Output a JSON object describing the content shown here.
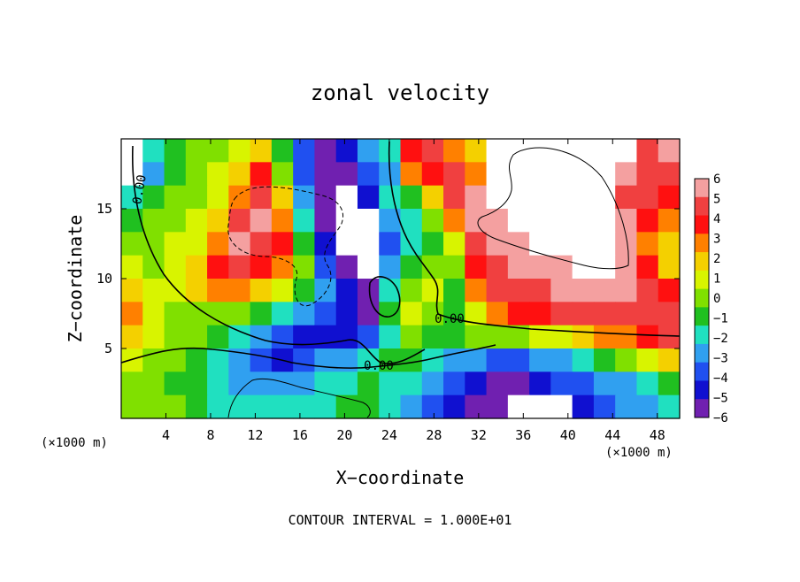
{
  "chart_data": {
    "type": "heatmap",
    "title": "zonal velocity",
    "xlabel": "X−coordinate",
    "ylabel": "Z−coordinate",
    "x_unit": "(×1000 m)",
    "y_unit": "(×1000 m)",
    "xlim": [
      0,
      50
    ],
    "ylim": [
      0,
      20
    ],
    "xticks": [
      4,
      8,
      12,
      16,
      20,
      24,
      28,
      32,
      36,
      40,
      44,
      48
    ],
    "yticks": [
      5,
      10,
      15
    ],
    "colorbar": {
      "levels": [
        6,
        5,
        4,
        3,
        2,
        1,
        0,
        -1,
        -2,
        -3,
        -4,
        -5,
        -6
      ],
      "labels": [
        "6",
        "5",
        "4",
        "3",
        "2",
        "1",
        "0",
        "−1",
        "−2",
        "−3",
        "−4",
        "−5",
        "−6"
      ],
      "colors": [
        "#f4a0a0",
        "#f04040",
        "#ff1010",
        "#ff8000",
        "#f4d000",
        "#d8f400",
        "#80e000",
        "#20c020",
        "#20e0c0",
        "#30a0f0",
        "#2050f0",
        "#1010d0",
        "#7020b0"
      ]
    },
    "contour_labels": [
      "0.00",
      "0.00",
      "0.00"
    ],
    "contour_interval": "CONTOUR INTERVAL = 1.000E+01",
    "grid": false,
    "field": [
      [
        null,
        -2,
        -1,
        0,
        0,
        1,
        2,
        -1,
        -4,
        -6,
        -5,
        -3,
        -2,
        4,
        5,
        3,
        2,
        null,
        null,
        null,
        null,
        null,
        null,
        null,
        5,
        6
      ],
      [
        null,
        -3,
        -1,
        0,
        1,
        2,
        4,
        0,
        -4,
        -6,
        -6,
        -4,
        -3,
        3,
        4,
        5,
        3,
        null,
        null,
        null,
        null,
        null,
        null,
        6,
        5,
        5
      ],
      [
        -2,
        -1,
        0,
        0,
        1,
        3,
        5,
        2,
        -3,
        -6,
        null,
        -5,
        -2,
        -1,
        2,
        5,
        6,
        null,
        null,
        null,
        null,
        null,
        null,
        5,
        5,
        4
      ],
      [
        -1,
        0,
        0,
        1,
        2,
        5,
        6,
        3,
        -2,
        -6,
        null,
        null,
        -3,
        -2,
        0,
        3,
        6,
        6,
        null,
        null,
        null,
        null,
        null,
        6,
        4,
        3
      ],
      [
        0,
        0,
        1,
        1,
        3,
        6,
        5,
        4,
        -1,
        -5,
        null,
        null,
        -4,
        -2,
        -1,
        1,
        5,
        6,
        6,
        null,
        null,
        null,
        null,
        6,
        3,
        2
      ],
      [
        1,
        0,
        1,
        2,
        4,
        5,
        4,
        3,
        0,
        -4,
        -6,
        null,
        -3,
        -1,
        0,
        0,
        4,
        5,
        6,
        6,
        6,
        null,
        null,
        6,
        4,
        2
      ],
      [
        2,
        1,
        1,
        2,
        3,
        3,
        2,
        1,
        -1,
        -3,
        -5,
        -6,
        -2,
        0,
        1,
        -1,
        3,
        5,
        5,
        5,
        6,
        6,
        6,
        6,
        5,
        4
      ],
      [
        3,
        1,
        0,
        0,
        0,
        0,
        -1,
        -2,
        -3,
        -4,
        -5,
        -6,
        -1,
        1,
        0,
        -1,
        1,
        3,
        4,
        4,
        5,
        5,
        5,
        5,
        5,
        5
      ],
      [
        2,
        1,
        0,
        0,
        -1,
        -2,
        -3,
        -4,
        -5,
        -5,
        -5,
        -4,
        -2,
        0,
        -1,
        -1,
        0,
        0,
        0,
        1,
        1,
        2,
        3,
        3,
        4,
        5
      ],
      [
        1,
        0,
        0,
        -1,
        -2,
        -3,
        -4,
        -5,
        -4,
        -3,
        -3,
        -2,
        -1,
        -1,
        -2,
        -3,
        -3,
        -4,
        -4,
        -3,
        -3,
        -2,
        -1,
        0,
        1,
        2
      ],
      [
        0,
        0,
        -1,
        -1,
        -2,
        -3,
        -3,
        -3,
        -3,
        -2,
        -2,
        -1,
        -2,
        -2,
        -3,
        -4,
        -5,
        -6,
        -6,
        -5,
        -4,
        -4,
        -3,
        -3,
        -2,
        -1
      ],
      [
        0,
        0,
        0,
        -1,
        -2,
        -2,
        -2,
        -2,
        -2,
        -2,
        -1,
        -1,
        -2,
        -3,
        -4,
        -5,
        -6,
        -6,
        null,
        null,
        null,
        -5,
        -4,
        -3,
        -3,
        -2
      ]
    ]
  },
  "colors": {
    "contour": "#000000",
    "background": "#ffffff"
  }
}
